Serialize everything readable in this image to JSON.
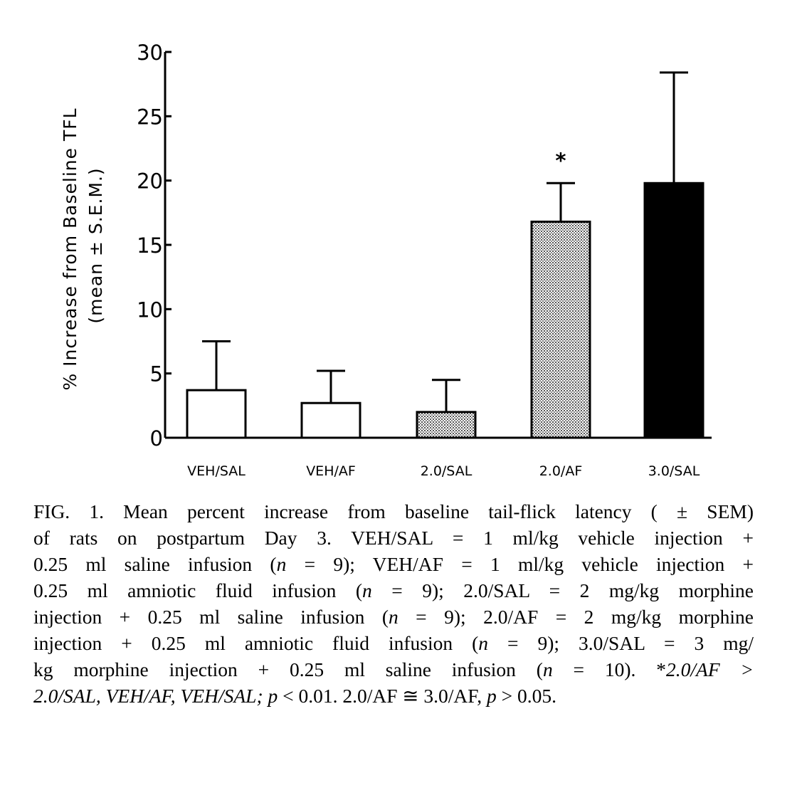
{
  "chart_data": {
    "type": "bar",
    "title": "",
    "xlabel": "",
    "ylabel": [
      "% Increase from Baseline TFL",
      "(mean ± S.E.M.)"
    ],
    "ylim": [
      0,
      30
    ],
    "yticks": [
      0,
      5,
      10,
      15,
      20,
      25,
      30
    ],
    "grid": false,
    "categories": [
      "VEH/SAL",
      "VEH/AF",
      "2.0/SAL",
      "2.0/AF",
      "3.0/SAL"
    ],
    "values": [
      3.7,
      2.7,
      2.0,
      16.8,
      19.8
    ],
    "error_upper": [
      7.5,
      5.2,
      4.5,
      19.8,
      28.4
    ],
    "fills": [
      "white",
      "white",
      "stipple",
      "stipple",
      "black"
    ],
    "annotations": [
      {
        "category": "2.0/AF",
        "text": "*"
      }
    ]
  },
  "caption": {
    "lines": [
      [
        {
          "t": "FIG. 1. Mean percent increase from baseline tail-flick latency ( ± SEM)"
        }
      ],
      [
        {
          "t": "of rats on postpartum Day 3. VEH/SAL = 1 ml/kg vehicle injection +"
        }
      ],
      [
        {
          "t": "0.25 ml saline infusion ("
        },
        {
          "t": "n",
          "i": true
        },
        {
          "t": " = 9); VEH/AF = 1 ml/kg vehicle injection +"
        }
      ],
      [
        {
          "t": "0.25 ml amniotic fluid infusion ("
        },
        {
          "t": "n",
          "i": true
        },
        {
          "t": " = 9); 2.0/SAL = 2 mg/kg morphine"
        }
      ],
      [
        {
          "t": "injection + 0.25 ml saline infusion ("
        },
        {
          "t": "n",
          "i": true
        },
        {
          "t": " = 9); 2.0/AF = 2 mg/kg morphine"
        }
      ],
      [
        {
          "t": "injection + 0.25 ml amniotic fluid infusion ("
        },
        {
          "t": "n",
          "i": true
        },
        {
          "t": " = 9); 3.0/SAL = 3 mg/"
        }
      ],
      [
        {
          "t": "kg morphine injection + 0.25 ml saline infusion ("
        },
        {
          "t": "n",
          "i": true
        },
        {
          "t": " = 10). *"
        },
        {
          "t": "2.0/AF >",
          "i": true
        }
      ],
      [
        {
          "t": "2.0/SAL, VEH/AF, VEH/SAL; p",
          "i": true
        },
        {
          "t": " < 0.01. 2.0/AF ≅ 3.0/AF, "
        },
        {
          "t": "p",
          "i": true
        },
        {
          "t": " > 0.05."
        }
      ]
    ]
  }
}
